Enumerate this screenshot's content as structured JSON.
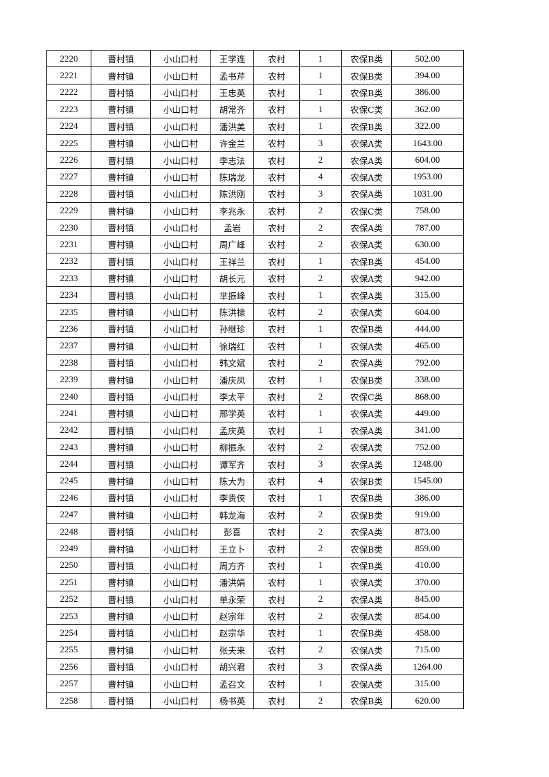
{
  "table": {
    "rows": [
      [
        "2220",
        "曹村镇",
        "小山口村",
        "王学连",
        "农村",
        "1",
        "农保B类",
        "502.00"
      ],
      [
        "2221",
        "曹村镇",
        "小山口村",
        "孟书芹",
        "农村",
        "1",
        "农保B类",
        "394.00"
      ],
      [
        "2222",
        "曹村镇",
        "小山口村",
        "王忠英",
        "农村",
        "1",
        "农保B类",
        "386.00"
      ],
      [
        "2223",
        "曹村镇",
        "小山口村",
        "胡常齐",
        "农村",
        "1",
        "农保C类",
        "362.00"
      ],
      [
        "2224",
        "曹村镇",
        "小山口村",
        "潘洪美",
        "农村",
        "1",
        "农保B类",
        "322.00"
      ],
      [
        "2225",
        "曹村镇",
        "小山口村",
        "许金兰",
        "农村",
        "3",
        "农保A类",
        "1643.00"
      ],
      [
        "2226",
        "曹村镇",
        "小山口村",
        "李志法",
        "农村",
        "2",
        "农保A类",
        "604.00"
      ],
      [
        "2227",
        "曹村镇",
        "小山口村",
        "陈瑞龙",
        "农村",
        "4",
        "农保A类",
        "1953.00"
      ],
      [
        "2228",
        "曹村镇",
        "小山口村",
        "陈洪刚",
        "农村",
        "3",
        "农保A类",
        "1031.00"
      ],
      [
        "2229",
        "曹村镇",
        "小山口村",
        "李兆永",
        "农村",
        "2",
        "农保C类",
        "758.00"
      ],
      [
        "2230",
        "曹村镇",
        "小山口村",
        "孟岩",
        "农村",
        "2",
        "农保A类",
        "787.00"
      ],
      [
        "2231",
        "曹村镇",
        "小山口村",
        "周广峰",
        "农村",
        "2",
        "农保A类",
        "630.00"
      ],
      [
        "2232",
        "曹村镇",
        "小山口村",
        "王祥兰",
        "农村",
        "1",
        "农保B类",
        "454.00"
      ],
      [
        "2233",
        "曹村镇",
        "小山口村",
        "胡长元",
        "农村",
        "2",
        "农保A类",
        "942.00"
      ],
      [
        "2234",
        "曹村镇",
        "小山口村",
        "芈振峰",
        "农村",
        "1",
        "农保A类",
        "315.00"
      ],
      [
        "2235",
        "曹村镇",
        "小山口村",
        "陈洪棣",
        "农村",
        "2",
        "农保A类",
        "604.00"
      ],
      [
        "2236",
        "曹村镇",
        "小山口村",
        "孙继珍",
        "农村",
        "1",
        "农保B类",
        "444.00"
      ],
      [
        "2237",
        "曹村镇",
        "小山口村",
        "徐瑞红",
        "农村",
        "1",
        "农保A类",
        "465.00"
      ],
      [
        "2238",
        "曹村镇",
        "小山口村",
        "韩文斌",
        "农村",
        "2",
        "农保A类",
        "792.00"
      ],
      [
        "2239",
        "曹村镇",
        "小山口村",
        "潘庆凤",
        "农村",
        "1",
        "农保B类",
        "338.00"
      ],
      [
        "2240",
        "曹村镇",
        "小山口村",
        "李太平",
        "农村",
        "2",
        "农保C类",
        "868.00"
      ],
      [
        "2241",
        "曹村镇",
        "小山口村",
        "邢学英",
        "农村",
        "1",
        "农保A类",
        "449.00"
      ],
      [
        "2242",
        "曹村镇",
        "小山口村",
        "孟庆英",
        "农村",
        "1",
        "农保A类",
        "341.00"
      ],
      [
        "2243",
        "曹村镇",
        "小山口村",
        "柳振永",
        "农村",
        "2",
        "农保A类",
        "752.00"
      ],
      [
        "2244",
        "曹村镇",
        "小山口村",
        "谭军齐",
        "农村",
        "3",
        "农保A类",
        "1248.00"
      ],
      [
        "2245",
        "曹村镇",
        "小山口村",
        "陈大为",
        "农村",
        "4",
        "农保B类",
        "1545.00"
      ],
      [
        "2246",
        "曹村镇",
        "小山口村",
        "李贵侠",
        "农村",
        "1",
        "农保B类",
        "386.00"
      ],
      [
        "2247",
        "曹村镇",
        "小山口村",
        "韩龙海",
        "农村",
        "2",
        "农保B类",
        "919.00"
      ],
      [
        "2248",
        "曹村镇",
        "小山口村",
        "彭喜",
        "农村",
        "2",
        "农保A类",
        "873.00"
      ],
      [
        "2249",
        "曹村镇",
        "小山口村",
        "王立卜",
        "农村",
        "2",
        "农保B类",
        "859.00"
      ],
      [
        "2250",
        "曹村镇",
        "小山口村",
        "周方齐",
        "农村",
        "1",
        "农保B类",
        "410.00"
      ],
      [
        "2251",
        "曹村镇",
        "小山口村",
        "潘洪娟",
        "农村",
        "1",
        "农保A类",
        "370.00"
      ],
      [
        "2252",
        "曹村镇",
        "小山口村",
        "单永荣",
        "农村",
        "2",
        "农保A类",
        "845.00"
      ],
      [
        "2253",
        "曹村镇",
        "小山口村",
        "赵宗年",
        "农村",
        "2",
        "农保A类",
        "854.00"
      ],
      [
        "2254",
        "曹村镇",
        "小山口村",
        "赵宗华",
        "农村",
        "1",
        "农保B类",
        "458.00"
      ],
      [
        "2255",
        "曹村镇",
        "小山口村",
        "张夫来",
        "农村",
        "2",
        "农保A类",
        "715.00"
      ],
      [
        "2256",
        "曹村镇",
        "小山口村",
        "胡兴君",
        "农村",
        "3",
        "农保A类",
        "1264.00"
      ],
      [
        "2257",
        "曹村镇",
        "小山口村",
        "孟召文",
        "农村",
        "1",
        "农保A类",
        "315.00"
      ],
      [
        "2258",
        "曹村镇",
        "小山口村",
        "杨书英",
        "农村",
        "2",
        "农保B类",
        "620.00"
      ]
    ]
  }
}
